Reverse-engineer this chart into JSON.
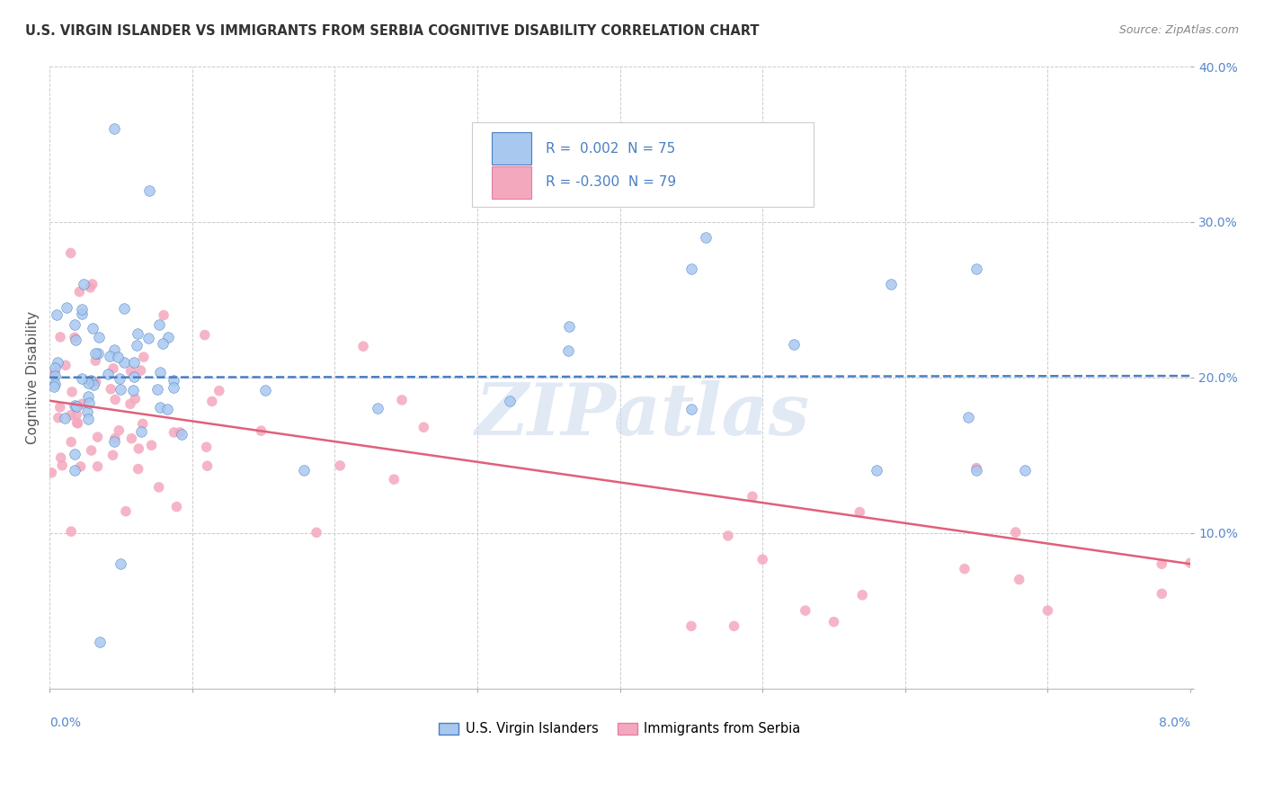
{
  "title": "U.S. VIRGIN ISLANDER VS IMMIGRANTS FROM SERBIA COGNITIVE DISABILITY CORRELATION CHART",
  "source": "Source: ZipAtlas.com",
  "ylabel": "Cognitive Disability",
  "xmin": 0.0,
  "xmax": 8.0,
  "ymin": 0.0,
  "ymax": 40.0,
  "series1_label": "U.S. Virgin Islanders",
  "series1_R": 0.002,
  "series1_N": 75,
  "series1_color": "#a8c8f0",
  "series1_edge_color": "#7aacd4",
  "series1_trend_color": "#4a7fc1",
  "series2_label": "Immigrants from Serbia",
  "series2_R": -0.3,
  "series2_N": 79,
  "series2_color": "#f4a8be",
  "series2_edge_color": "#e080a0",
  "series2_trend_color": "#e0607a",
  "watermark": "ZIPatlas",
  "blue_trend_y0": 20.0,
  "blue_trend_y1": 20.1,
  "pink_trend_y0": 18.5,
  "pink_trend_y1": 8.0,
  "grid_color": "#cccccc",
  "background_color": "#ffffff",
  "title_color": "#333333",
  "source_color": "#888888",
  "axis_tick_color": "#5588cc"
}
